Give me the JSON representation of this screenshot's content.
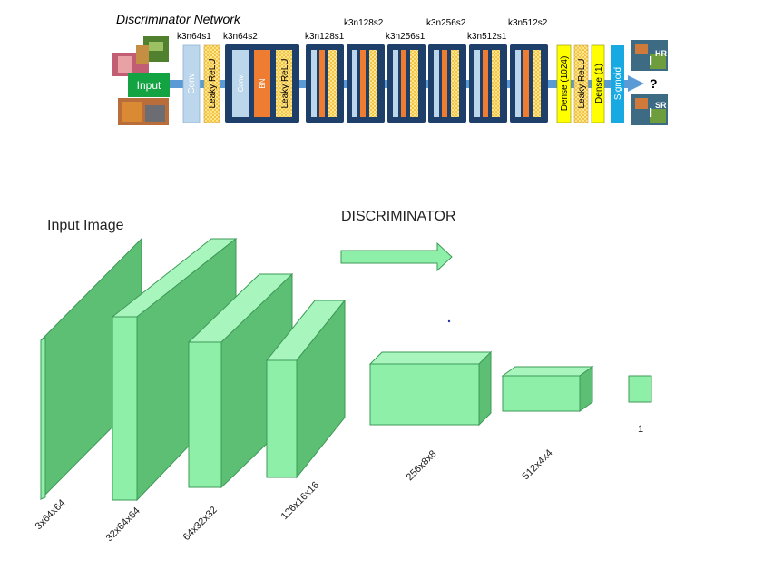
{
  "top": {
    "title": "Discriminator Network",
    "input_label": "Input",
    "block_labels": [
      "k3n64s1",
      "k3n64s2",
      "k3n128s1",
      "k3n128s2",
      "k3n256s1",
      "k3n256s2",
      "k3n512s1",
      "k3n512s2"
    ],
    "layers": {
      "conv": "Conv",
      "leaky_relu": "Leaky ReLU",
      "bn": "BN",
      "dense_1024": "Dense (1024)",
      "dense_1": "Dense (1)",
      "sigmoid": "Sigmoid"
    },
    "output": {
      "hr": "HR",
      "sr": "SR",
      "letter": "I",
      "question": "?"
    }
  },
  "bottom": {
    "input_title": "Input Image",
    "title": "DISCRIMINATOR",
    "shape_labels": [
      "3x64x64",
      "32x64x64",
      "64x32x32",
      "126x16x16",
      "256x8x8",
      "512x4x4",
      "1"
    ]
  },
  "colors": {
    "block_navy": "#1f3f6b",
    "conv_blue": "#bcd6ec",
    "bn_orange": "#ee7d32",
    "relu_yellow": "#ffe88a",
    "dense_yellow": "#ffff00",
    "sigmoid_blue": "#17a9e1",
    "pipe_blue": "#5b9bd5",
    "cube_front": "#8ef0a8",
    "cube_side": "#5cbf74",
    "cube_top": "#a8f5bd",
    "input_green": "#13a343"
  }
}
